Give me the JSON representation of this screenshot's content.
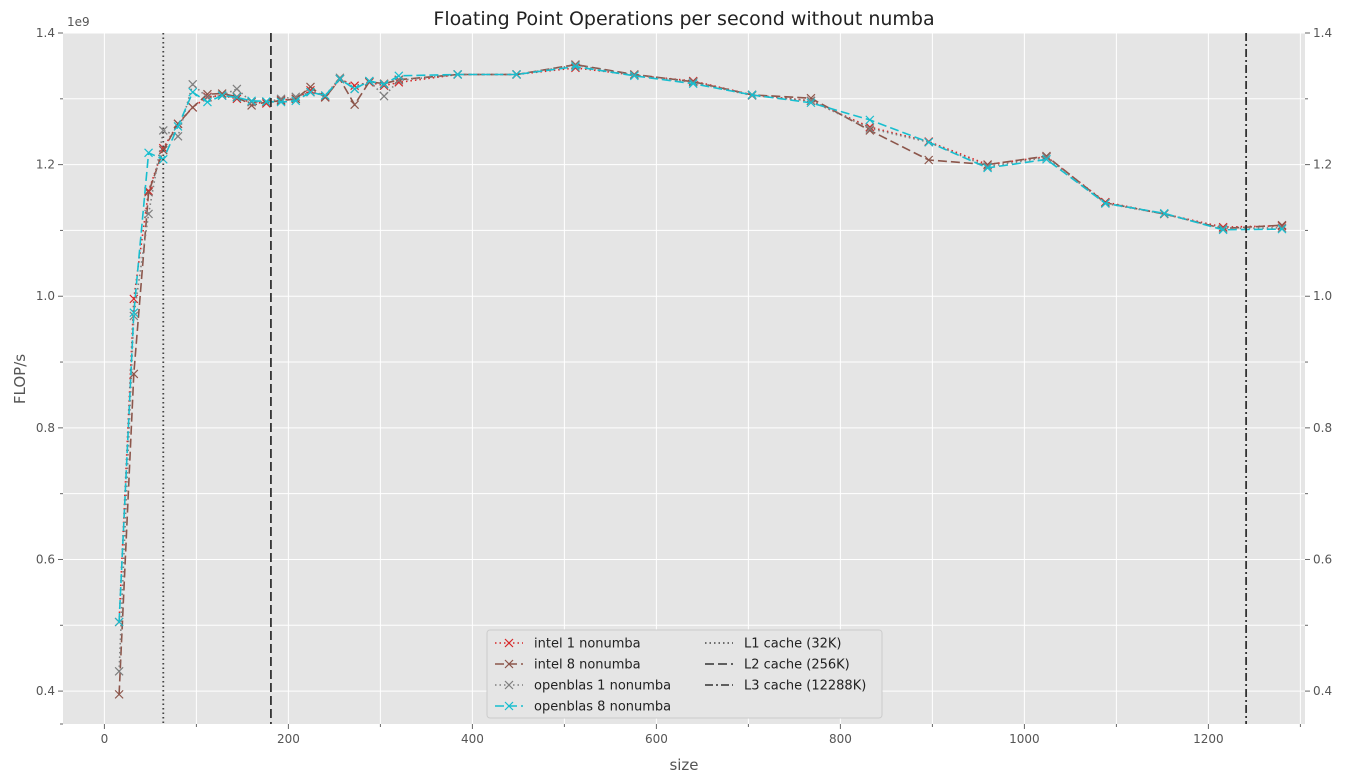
{
  "chart_data": {
    "type": "line",
    "title": "Floating Point Operations per second without numba",
    "xlabel": "size",
    "ylabel": "FLOP/s",
    "y_offset_label": "1e9",
    "xlim": [
      -45,
      1305
    ],
    "ylim": [
      0.35,
      1.4
    ],
    "xticks": [
      0,
      200,
      400,
      600,
      800,
      1000,
      1200
    ],
    "yticks": [
      0.4,
      0.6,
      0.8,
      1.0,
      1.2,
      1.4
    ],
    "ytick_labels": [
      "0.4",
      "0.6",
      "0.8",
      "1.0",
      "1.2",
      "1.4"
    ],
    "grid": true,
    "secondary_y_axis": true,
    "legend_position": "bottom-center",
    "series": [
      {
        "name": "intel 1 nonumba",
        "color": "#d62728",
        "linestyle": "dotted",
        "marker": "x",
        "x": [
          16,
          32,
          48,
          64,
          80,
          96,
          112,
          128,
          144,
          160,
          176,
          192,
          208,
          224,
          240,
          256,
          272,
          288,
          304,
          320,
          384,
          448,
          512,
          576,
          640,
          704,
          768,
          832,
          896,
          960,
          1024,
          1088,
          1152,
          1216,
          1280
        ],
        "y": [
          0.505,
          0.996,
          1.16,
          1.225,
          1.262,
          1.287,
          1.303,
          1.305,
          1.3,
          1.295,
          1.293,
          1.298,
          1.3,
          1.313,
          1.303,
          1.33,
          1.32,
          1.325,
          1.32,
          1.325,
          1.337,
          1.337,
          1.347,
          1.336,
          1.327,
          1.306,
          1.297,
          1.257,
          1.235,
          1.2,
          1.212,
          1.143,
          1.125,
          1.105,
          1.107
        ]
      },
      {
        "name": "intel 8 nonumba",
        "color": "#8c564b",
        "linestyle": "dashed",
        "marker": "x",
        "x": [
          16,
          32,
          48,
          64,
          80,
          96,
          112,
          128,
          144,
          160,
          176,
          192,
          208,
          224,
          240,
          256,
          272,
          288,
          304,
          320,
          384,
          448,
          512,
          576,
          640,
          704,
          768,
          832,
          896,
          960,
          1024,
          1088,
          1152,
          1216,
          1280
        ],
        "y": [
          0.395,
          0.882,
          1.158,
          1.222,
          1.262,
          1.287,
          1.307,
          1.308,
          1.303,
          1.29,
          1.295,
          1.297,
          1.3,
          1.318,
          1.302,
          1.33,
          1.291,
          1.326,
          1.323,
          1.329,
          1.337,
          1.337,
          1.352,
          1.337,
          1.326,
          1.306,
          1.301,
          1.252,
          1.207,
          1.2,
          1.213,
          1.142,
          1.125,
          1.103,
          1.108
        ]
      },
      {
        "name": "openblas 1 nonumba",
        "color": "#7f7f7f",
        "linestyle": "dotted",
        "marker": "x",
        "x": [
          16,
          32,
          48,
          64,
          80,
          96,
          112,
          128,
          144,
          160,
          176,
          192,
          208,
          224,
          240,
          256,
          272,
          288,
          304,
          320,
          384,
          448,
          512,
          576,
          640,
          704,
          768,
          832,
          896,
          960,
          1024,
          1088,
          1152,
          1216,
          1280
        ],
        "y": [
          0.43,
          0.97,
          1.125,
          1.252,
          1.243,
          1.322,
          1.302,
          1.305,
          1.315,
          1.295,
          1.295,
          1.3,
          1.303,
          1.31,
          1.305,
          1.332,
          1.315,
          1.327,
          1.304,
          1.328,
          1.337,
          1.337,
          1.351,
          1.336,
          1.325,
          1.305,
          1.297,
          1.255,
          1.234,
          1.197,
          1.211,
          1.141,
          1.125,
          1.103,
          1.104
        ]
      },
      {
        "name": "openblas 8 nonumba",
        "color": "#17becf",
        "linestyle": "dashed",
        "marker": "x",
        "x": [
          16,
          32,
          48,
          64,
          80,
          96,
          112,
          128,
          144,
          160,
          176,
          192,
          208,
          224,
          240,
          256,
          272,
          288,
          304,
          320,
          384,
          448,
          512,
          576,
          640,
          704,
          768,
          832,
          896,
          960,
          1024,
          1088,
          1152,
          1216,
          1280
        ],
        "y": [
          0.505,
          0.975,
          1.218,
          1.208,
          1.258,
          1.31,
          1.295,
          1.305,
          1.302,
          1.297,
          1.296,
          1.295,
          1.297,
          1.31,
          1.305,
          1.33,
          1.315,
          1.327,
          1.322,
          1.335,
          1.337,
          1.337,
          1.349,
          1.335,
          1.323,
          1.306,
          1.294,
          1.268,
          1.234,
          1.195,
          1.208,
          1.141,
          1.126,
          1.101,
          1.102
        ]
      },
      {
        "name": "L1 cache (32K)",
        "color": "#444444",
        "linestyle": "dotted",
        "marker": "none",
        "vline_x": 64
      },
      {
        "name": "L2 cache (256K)",
        "color": "#333333",
        "linestyle": "dashed",
        "marker": "none",
        "vline_x": 181
      },
      {
        "name": "L3 cache (12288K)",
        "color": "#333333",
        "linestyle": "dashdot",
        "marker": "none",
        "vline_x": 1241
      }
    ]
  }
}
